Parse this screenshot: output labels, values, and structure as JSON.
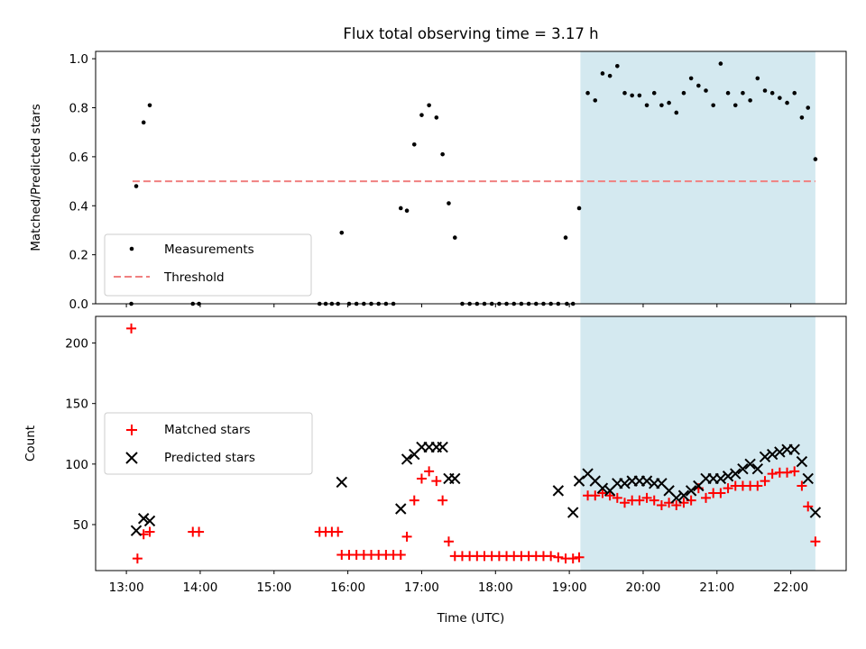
{
  "chart_data": [
    {
      "type": "scatter",
      "title": "Flux total observing time = 3.17 h",
      "xlabel": "",
      "ylabel": "Matched/Predicted stars",
      "ylim": [
        0,
        1.03
      ],
      "y_ticks": [
        0.0,
        0.2,
        0.4,
        0.6,
        0.8,
        1.0
      ],
      "y_tick_labels": [
        "0.0",
        "0.2",
        "0.4",
        "0.6",
        "0.8",
        "1.0"
      ],
      "x_tick_labels_shown": false,
      "highlight_span": {
        "x_start": "19:09",
        "x_end": "22:20",
        "color": "#d4e9f0"
      },
      "threshold": {
        "name": "Threshold",
        "value": 0.5,
        "x_start": "13:05",
        "x_end": "22:20",
        "color": "#f08080",
        "style": "dashed"
      },
      "legend_position": "lower-left",
      "series": [
        {
          "name": "Measurements",
          "marker": "dot",
          "color": "#000000",
          "x": [
            "13:04",
            "13:08",
            "13:14",
            "13:19",
            "13:54",
            "13:59",
            "15:37",
            "15:42",
            "15:47",
            "15:52",
            "15:55",
            "16:01",
            "16:07",
            "16:13",
            "16:19",
            "16:25",
            "16:31",
            "16:37",
            "16:43",
            "16:48",
            "16:54",
            "17:00",
            "17:06",
            "17:12",
            "17:17",
            "17:22",
            "17:27",
            "17:33",
            "17:39",
            "17:45",
            "17:51",
            "17:57",
            "18:03",
            "18:09",
            "18:15",
            "18:21",
            "18:27",
            "18:33",
            "18:39",
            "18:45",
            "18:51",
            "18:57",
            "19:03",
            "19:08",
            "19:15",
            "19:21",
            "19:27",
            "19:33",
            "19:39",
            "19:45",
            "19:51",
            "19:57",
            "20:03",
            "20:09",
            "20:15",
            "20:21",
            "20:27",
            "20:33",
            "20:39",
            "20:45",
            "20:51",
            "20:57",
            "21:03",
            "21:09",
            "21:15",
            "21:21",
            "21:27",
            "21:33",
            "21:39",
            "21:45",
            "21:51",
            "21:57",
            "22:03",
            "22:09",
            "22:14",
            "22:20",
            "18:58"
          ],
          "y": [
            0.0,
            0.48,
            0.74,
            0.81,
            0.0,
            0.0,
            0.0,
            0.0,
            0.0,
            0.0,
            0.29,
            0.0,
            0.0,
            0.0,
            0.0,
            0.0,
            0.0,
            0.0,
            0.39,
            0.38,
            0.65,
            0.77,
            0.81,
            0.76,
            0.61,
            0.41,
            0.27,
            0.0,
            0.0,
            0.0,
            0.0,
            0.0,
            0.0,
            0.0,
            0.0,
            0.0,
            0.0,
            0.0,
            0.0,
            0.0,
            0.0,
            0.27,
            0.0,
            0.39,
            0.86,
            0.83,
            0.94,
            0.93,
            0.97,
            0.86,
            0.85,
            0.85,
            0.81,
            0.86,
            0.81,
            0.82,
            0.78,
            0.86,
            0.92,
            0.89,
            0.87,
            0.81,
            0.98,
            0.86,
            0.81,
            0.86,
            0.83,
            0.92,
            0.87,
            0.86,
            0.84,
            0.82,
            0.86,
            0.76,
            0.8,
            0.59,
            0.0
          ]
        }
      ]
    },
    {
      "type": "scatter",
      "title": "",
      "xlabel": "Time (UTC)",
      "ylabel": "Count",
      "xlim": [
        "12:35",
        "22:45"
      ],
      "ylim": [
        12,
        222
      ],
      "x_ticks": [
        "13:00",
        "14:00",
        "15:00",
        "16:00",
        "17:00",
        "18:00",
        "19:00",
        "20:00",
        "21:00",
        "22:00"
      ],
      "y_ticks": [
        50,
        100,
        150,
        200
      ],
      "y_tick_labels": [
        "50",
        "100",
        "150",
        "200"
      ],
      "highlight_span": {
        "x_start": "19:09",
        "x_end": "22:20",
        "color": "#d4e9f0"
      },
      "legend_position": "center-left",
      "series": [
        {
          "name": "Matched stars",
          "marker": "plus",
          "color": "#ff0000",
          "x": [
            "13:04",
            "13:09",
            "13:14",
            "13:19",
            "13:54",
            "13:59",
            "15:37",
            "15:42",
            "15:47",
            "15:52",
            "15:55",
            "16:01",
            "16:07",
            "16:13",
            "16:19",
            "16:25",
            "16:31",
            "16:37",
            "16:43",
            "16:48",
            "16:54",
            "17:00",
            "17:06",
            "17:12",
            "17:17",
            "17:22",
            "17:27",
            "17:33",
            "17:39",
            "17:45",
            "17:51",
            "17:57",
            "18:03",
            "18:09",
            "18:15",
            "18:21",
            "18:27",
            "18:33",
            "18:39",
            "18:45",
            "18:51",
            "18:57",
            "19:03",
            "19:08",
            "19:15",
            "19:21",
            "19:27",
            "19:33",
            "19:39",
            "19:45",
            "19:51",
            "19:57",
            "20:03",
            "20:09",
            "20:15",
            "20:21",
            "20:27",
            "20:33",
            "20:39",
            "20:45",
            "20:51",
            "20:57",
            "21:03",
            "21:09",
            "21:15",
            "21:21",
            "21:27",
            "21:33",
            "21:39",
            "21:45",
            "21:51",
            "21:57",
            "22:03",
            "22:09",
            "22:14",
            "22:20"
          ],
          "y": [
            212,
            22,
            42,
            44,
            44,
            44,
            44,
            44,
            44,
            44,
            25,
            25,
            25,
            25,
            25,
            25,
            25,
            25,
            25,
            40,
            70,
            88,
            94,
            86,
            70,
            36,
            24,
            24,
            24,
            24,
            24,
            24,
            24,
            24,
            24,
            24,
            24,
            24,
            24,
            24,
            23,
            22,
            22,
            23,
            74,
            74,
            76,
            74,
            72,
            68,
            70,
            70,
            72,
            70,
            66,
            68,
            66,
            68,
            70,
            80,
            72,
            76,
            76,
            80,
            82,
            82,
            82,
            82,
            86,
            92,
            93,
            93,
            94,
            82,
            65,
            36
          ]
        },
        {
          "name": "Predicted stars",
          "marker": "x",
          "color": "#000000",
          "x": [
            "13:08",
            "13:14",
            "13:19",
            "15:55",
            "16:43",
            "16:48",
            "16:54",
            "17:00",
            "17:06",
            "17:12",
            "17:17",
            "17:22",
            "17:27",
            "18:51",
            "19:03",
            "19:08",
            "19:15",
            "19:21",
            "19:27",
            "19:33",
            "19:39",
            "19:45",
            "19:51",
            "19:57",
            "20:03",
            "20:09",
            "20:15",
            "20:21",
            "20:27",
            "20:33",
            "20:39",
            "20:45",
            "20:51",
            "20:57",
            "21:03",
            "21:09",
            "21:15",
            "21:21",
            "21:27",
            "21:33",
            "21:39",
            "21:45",
            "21:51",
            "21:57",
            "22:03",
            "22:09",
            "22:14",
            "22:20"
          ],
          "y": [
            45,
            55,
            53,
            85,
            63,
            104,
            108,
            114,
            114,
            114,
            114,
            88,
            88,
            78,
            60,
            86,
            92,
            86,
            80,
            78,
            84,
            84,
            86,
            86,
            86,
            84,
            84,
            78,
            72,
            74,
            78,
            82,
            88,
            88,
            88,
            90,
            92,
            96,
            100,
            96,
            106,
            108,
            110,
            112,
            112,
            102,
            88,
            60
          ]
        }
      ]
    }
  ]
}
